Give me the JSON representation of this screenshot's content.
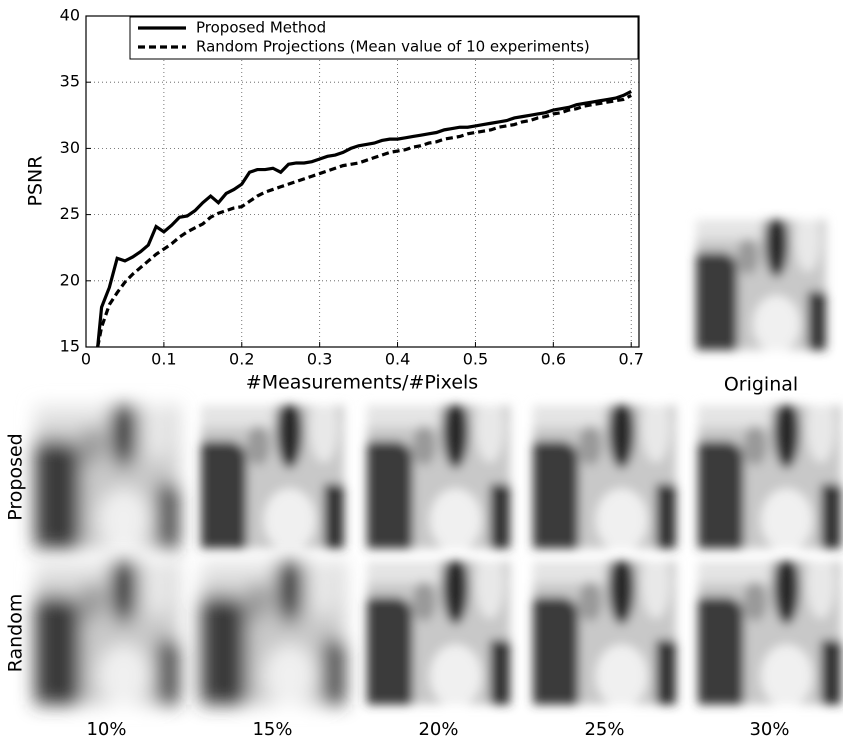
{
  "chart_data": {
    "type": "line",
    "xlabel": "#Measurements/#Pixels",
    "ylabel": "PSNR",
    "x": [
      0.015,
      0.02,
      0.03,
      0.04,
      0.05,
      0.06,
      0.07,
      0.08,
      0.09,
      0.1,
      0.11,
      0.12,
      0.13,
      0.14,
      0.15,
      0.16,
      0.17,
      0.18,
      0.19,
      0.2,
      0.21,
      0.22,
      0.23,
      0.24,
      0.25,
      0.26,
      0.27,
      0.28,
      0.29,
      0.3,
      0.31,
      0.32,
      0.33,
      0.34,
      0.35,
      0.36,
      0.37,
      0.38,
      0.39,
      0.4,
      0.41,
      0.42,
      0.43,
      0.44,
      0.45,
      0.46,
      0.47,
      0.48,
      0.49,
      0.5,
      0.51,
      0.52,
      0.53,
      0.54,
      0.55,
      0.56,
      0.57,
      0.58,
      0.59,
      0.6,
      0.61,
      0.62,
      0.63,
      0.64,
      0.65,
      0.66,
      0.67,
      0.68,
      0.69,
      0.7
    ],
    "series": [
      {
        "name": "Proposed Method",
        "color": "#000000",
        "linestyle": "solid",
        "values": [
          15,
          18,
          19.5,
          21.7,
          21.5,
          21.8,
          22.2,
          22.7,
          24.1,
          23.7,
          24.2,
          24.8,
          24.9,
          25.3,
          25.9,
          26.4,
          25.9,
          26.6,
          26.9,
          27.3,
          28.2,
          28.4,
          28.4,
          28.5,
          28.2,
          28.8,
          28.9,
          28.9,
          29.0,
          29.2,
          29.4,
          29.5,
          29.7,
          30.0,
          30.2,
          30.3,
          30.4,
          30.6,
          30.7,
          30.7,
          30.8,
          30.9,
          31.0,
          31.1,
          31.2,
          31.4,
          31.5,
          31.6,
          31.6,
          31.7,
          31.8,
          31.9,
          32.0,
          32.1,
          32.3,
          32.4,
          32.5,
          32.6,
          32.7,
          32.9,
          33.0,
          33.1,
          33.3,
          33.4,
          33.5,
          33.6,
          33.7,
          33.8,
          34.0,
          34.3
        ]
      },
      {
        "name": "Random Projections (Mean value of 10 experiments)",
        "color": "#000000",
        "linestyle": "dashed",
        "values": [
          15,
          16.5,
          18.2,
          19.1,
          19.9,
          20.5,
          21.0,
          21.5,
          22.0,
          22.4,
          22.8,
          23.3,
          23.7,
          24.0,
          24.3,
          24.8,
          25.1,
          25.3,
          25.5,
          25.6,
          26.0,
          26.4,
          26.7,
          26.9,
          27.1,
          27.3,
          27.5,
          27.7,
          27.9,
          28.1,
          28.3,
          28.5,
          28.7,
          28.8,
          28.9,
          29.1,
          29.3,
          29.5,
          29.7,
          29.8,
          29.9,
          30.1,
          30.2,
          30.4,
          30.5,
          30.7,
          30.8,
          30.9,
          31.1,
          31.2,
          31.3,
          31.4,
          31.6,
          31.7,
          31.8,
          32.0,
          32.1,
          32.3,
          32.4,
          32.6,
          32.7,
          32.9,
          33.0,
          33.2,
          33.3,
          33.4,
          33.5,
          33.6,
          33.7,
          34.0
        ]
      }
    ],
    "xlim": [
      0,
      0.71
    ],
    "ylim": [
      15,
      40
    ],
    "xticks": [
      0,
      0.1,
      0.2,
      0.3,
      0.4,
      0.5,
      0.6,
      0.7
    ],
    "yticks": [
      15,
      20,
      25,
      30,
      35,
      40
    ],
    "grid": true,
    "legend": "upper right"
  },
  "image_grid": {
    "original_label": "Original",
    "row_labels": [
      "Proposed",
      "Random"
    ],
    "column_labels": [
      "10%",
      "15%",
      "20%",
      "25%",
      "30%"
    ]
  }
}
